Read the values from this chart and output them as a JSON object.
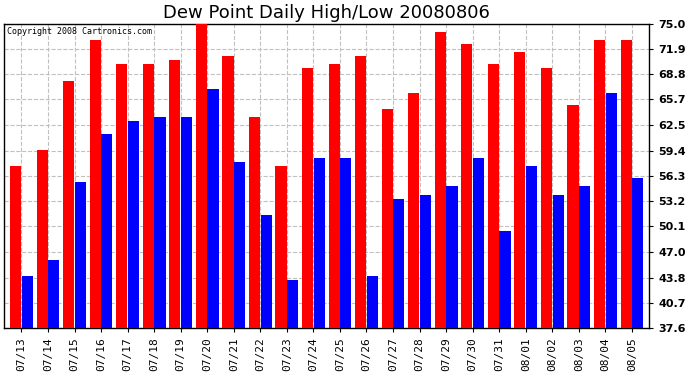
{
  "title": "Dew Point Daily High/Low 20080806",
  "copyright": "Copyright 2008 Cartronics.com",
  "dates": [
    "07/13",
    "07/14",
    "07/15",
    "07/16",
    "07/17",
    "07/18",
    "07/19",
    "07/20",
    "07/21",
    "07/22",
    "07/23",
    "07/24",
    "07/25",
    "07/26",
    "07/27",
    "07/28",
    "07/29",
    "07/30",
    "07/31",
    "08/01",
    "08/02",
    "08/03",
    "08/04",
    "08/05"
  ],
  "highs": [
    57.5,
    59.5,
    68.0,
    73.0,
    70.0,
    70.0,
    70.5,
    75.5,
    71.0,
    63.5,
    57.5,
    69.5,
    70.0,
    71.0,
    64.5,
    66.5,
    74.0,
    72.5,
    70.0,
    71.5,
    69.5,
    65.0,
    73.0,
    73.0
  ],
  "lows": [
    44.0,
    46.0,
    55.5,
    61.5,
    63.0,
    63.5,
    63.5,
    67.0,
    58.0,
    51.5,
    43.5,
    58.5,
    58.5,
    44.0,
    53.5,
    54.0,
    55.0,
    58.5,
    49.5,
    57.5,
    54.0,
    55.0,
    66.5,
    56.0
  ],
  "high_color": "#FF0000",
  "low_color": "#0000FF",
  "bg_color": "#FFFFFF",
  "grid_color": "#C0C0C0",
  "yticks": [
    37.6,
    40.7,
    43.8,
    47.0,
    50.1,
    53.2,
    56.3,
    59.4,
    62.5,
    65.7,
    68.8,
    71.9,
    75.0
  ],
  "ylim": [
    37.6,
    75.0
  ],
  "ybase": 37.6,
  "title_fontsize": 13,
  "tick_fontsize": 8
}
